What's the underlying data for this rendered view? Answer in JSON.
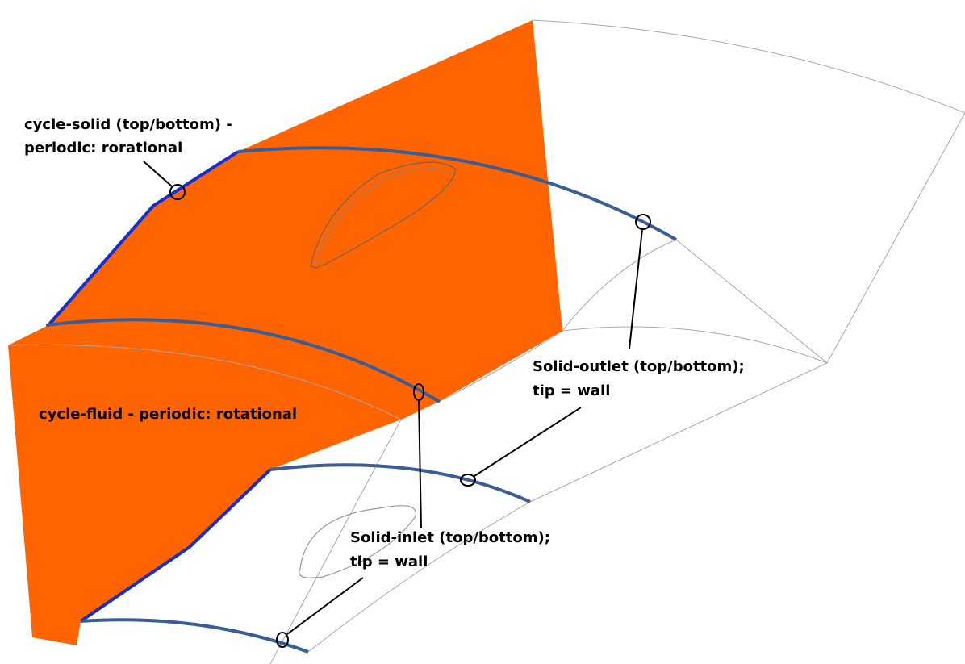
{
  "labels": [
    {
      "lines": [
        "cycle-solid (top/bottom) -",
        "periodic: rorational"
      ]
    },
    {
      "lines": [
        "cycle-fluid - periodic: rotational"
      ]
    },
    {
      "lines": [
        "Solid-outlet (top/bottom);",
        "tip = wall"
      ]
    },
    {
      "lines": [
        "Solid-inlet (top/bottom);",
        "tip = wall"
      ]
    }
  ]
}
